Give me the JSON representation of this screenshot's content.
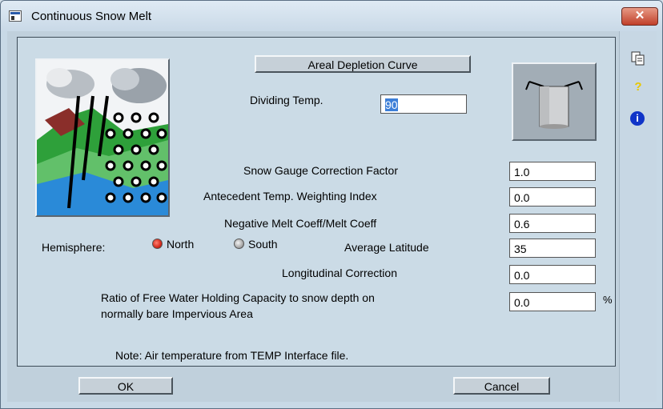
{
  "window": {
    "title": "Continuous Snow Melt",
    "close_symbol": "✕"
  },
  "buttons": {
    "areal_depletion": "Areal Depletion Curve",
    "ok": "OK",
    "cancel": "Cancel"
  },
  "fields": {
    "dividing_temp": {
      "label": "Dividing Temp.",
      "value": "90"
    },
    "snow_gauge": {
      "label": "Snow Gauge Correction Factor",
      "value": "1.0"
    },
    "antecedent": {
      "label": "Antecedent Temp. Weighting Index",
      "value": "0.0"
    },
    "negative_melt": {
      "label": "Negative Melt Coeff/Melt Coeff",
      "value": "0.6"
    },
    "avg_latitude": {
      "label": "Average Latitude",
      "value": "35"
    },
    "longitudinal": {
      "label": "Longitudinal Correction",
      "value": "0.0"
    },
    "free_water": {
      "label_line1": "Ratio of Free Water Holding Capacity to snow depth on",
      "label_line2": "normally bare Impervious Area",
      "value": "0.0",
      "unit": "%"
    }
  },
  "hemisphere": {
    "label": "Hemisphere:",
    "options": [
      "North",
      "South"
    ],
    "selected": "North"
  },
  "note": "Note: Air temperature from TEMP Interface file.",
  "sidebar": {
    "icons": [
      "copy-icon",
      "help-icon",
      "info-icon"
    ],
    "help_glyph": "?",
    "info_glyph": "i"
  },
  "colors": {
    "radio_selected": "#d42a1c",
    "info_blue": "#1034c8",
    "help_yellow": "#e8c800"
  }
}
